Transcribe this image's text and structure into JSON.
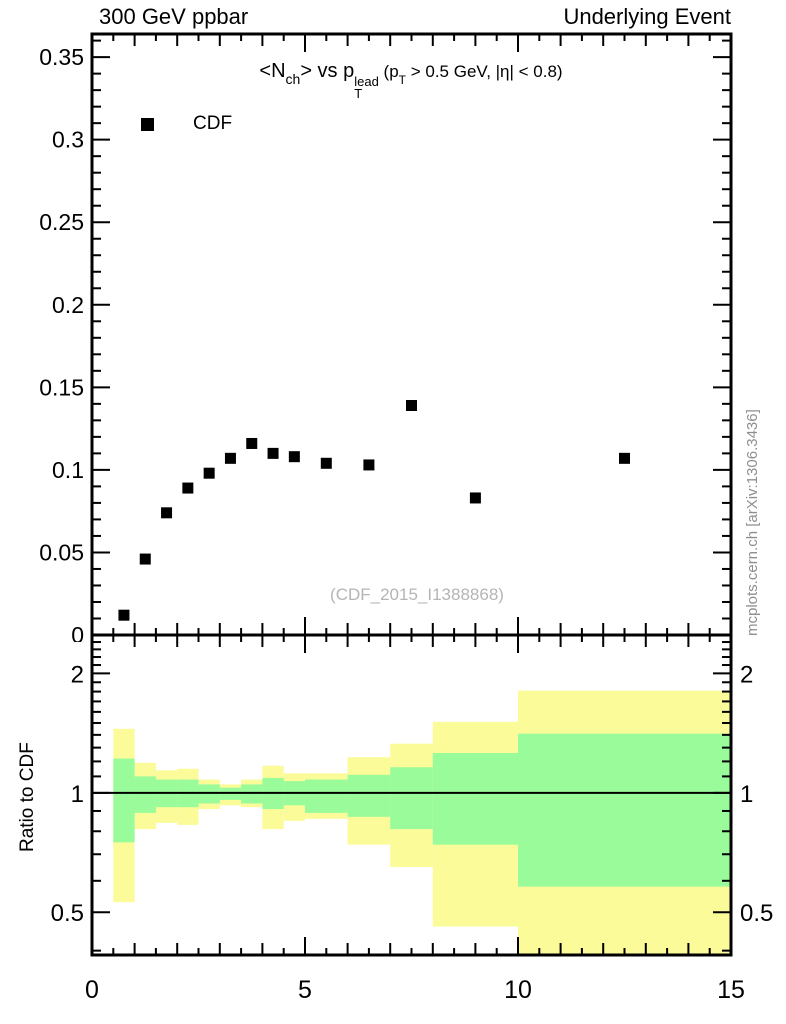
{
  "header": {
    "left": "300 GeV ppbar",
    "right": "Underlying Event"
  },
  "main_title_segments": [
    {
      "t": "<N",
      "s": "b"
    },
    {
      "t": "ch",
      "s": "sub"
    },
    {
      "t": "> vs p",
      "s": "b"
    },
    {
      "top": "lead",
      "bottom": "T",
      "s": "stack"
    },
    {
      "t": " (p",
      "s": "small"
    },
    {
      "t": "T",
      "s": "smallsub"
    },
    {
      "t": " > 0.5 GeV, |η| < 0.8)",
      "s": "small"
    }
  ],
  "legend": {
    "label": "CDF",
    "marker": "filled-square",
    "marker_color": "#000000"
  },
  "watermark": "(CDF_2015_I1388868)",
  "side_text": "mcplots.cern.ch [arXiv:1306.3436]",
  "ratio_axis_title": "Ratio to CDF",
  "colors": {
    "band_yellow": "#fbfb99",
    "band_green": "#99fb99",
    "marker": "#000000",
    "watermark_gray": "#b5b5b5",
    "side_text_gray": "#8f8f8f",
    "axis": "#000000"
  },
  "chart_data": [
    {
      "type": "scatter",
      "title": "<N_ch> vs p_T^lead (p_T > 0.5 GeV, |η| < 0.8)",
      "xlabel": "",
      "ylabel": "",
      "xlim": [
        0,
        15
      ],
      "ylim": [
        0,
        0.364
      ],
      "grid": false,
      "legend_position": "top-left",
      "yticks": [
        {
          "v": 0,
          "label": "0"
        },
        {
          "v": 0.05,
          "label": "0.05"
        },
        {
          "v": 0.1,
          "label": "0.1"
        },
        {
          "v": 0.15,
          "label": "0.15"
        },
        {
          "v": 0.2,
          "label": "0.2"
        },
        {
          "v": 0.25,
          "label": "0.25"
        },
        {
          "v": 0.3,
          "label": "0.3"
        },
        {
          "v": 0.35,
          "label": "0.35"
        }
      ],
      "y_minor_step": 0.01,
      "xticks": [
        {
          "v": 0,
          "label": ""
        },
        {
          "v": 5,
          "label": ""
        },
        {
          "v": 10,
          "label": ""
        },
        {
          "v": 15,
          "label": ""
        }
      ],
      "x_mid_step": 1,
      "x_minor_step": 0.5,
      "series": [
        {
          "name": "CDF",
          "marker": "filled-square",
          "color": "#000000",
          "x": [
            0.75,
            1.25,
            1.75,
            2.25,
            2.75,
            3.25,
            3.75,
            4.25,
            4.75,
            5.5,
            6.5,
            7.5,
            9.0,
            12.5
          ],
          "y": [
            0.012,
            0.046,
            0.074,
            0.089,
            0.098,
            0.107,
            0.116,
            0.11,
            0.108,
            0.104,
            0.103,
            0.139,
            0.083,
            0.107
          ]
        }
      ]
    },
    {
      "type": "area",
      "name": "ratio-to-cdf",
      "title": "Ratio to CDF",
      "yscale": "log",
      "xlim": [
        0,
        15
      ],
      "ylim": [
        0.39,
        2.5
      ],
      "reference_line": 1,
      "yticks": [
        {
          "v": 0.5,
          "label": "0.5"
        },
        {
          "v": 1,
          "label": "1"
        },
        {
          "v": 2,
          "label": "2"
        }
      ],
      "y_minor": [
        0.4,
        0.6,
        0.7,
        0.8,
        0.9,
        1.1,
        1.2,
        1.3,
        1.4,
        1.5,
        1.6,
        1.7,
        1.8,
        1.9,
        2.1,
        2.2,
        2.3,
        2.4
      ],
      "xticks": [
        {
          "v": 0,
          "label": "0"
        },
        {
          "v": 5,
          "label": "5"
        },
        {
          "v": 10,
          "label": "10"
        },
        {
          "v": 15,
          "label": "15"
        }
      ],
      "x_mid_step": 1,
      "x_minor_step": 0.5,
      "bands": [
        {
          "xlo": 0.5,
          "xhi": 1.0,
          "yellow_lo": 0.53,
          "yellow_hi": 1.45,
          "green_lo": 0.75,
          "green_hi": 1.22
        },
        {
          "xlo": 1.0,
          "xhi": 1.5,
          "yellow_lo": 0.81,
          "yellow_hi": 1.19,
          "green_lo": 0.89,
          "green_hi": 1.1
        },
        {
          "xlo": 1.5,
          "xhi": 2.0,
          "yellow_lo": 0.84,
          "yellow_hi": 1.14,
          "green_lo": 0.92,
          "green_hi": 1.08
        },
        {
          "xlo": 2.0,
          "xhi": 2.5,
          "yellow_lo": 0.83,
          "yellow_hi": 1.15,
          "green_lo": 0.92,
          "green_hi": 1.08
        },
        {
          "xlo": 2.5,
          "xhi": 3.0,
          "yellow_lo": 0.91,
          "yellow_hi": 1.08,
          "green_lo": 0.94,
          "green_hi": 1.05
        },
        {
          "xlo": 3.0,
          "xhi": 3.5,
          "yellow_lo": 0.93,
          "yellow_hi": 1.05,
          "green_lo": 0.96,
          "green_hi": 1.03
        },
        {
          "xlo": 3.5,
          "xhi": 4.0,
          "yellow_lo": 0.92,
          "yellow_hi": 1.08,
          "green_lo": 0.94,
          "green_hi": 1.05
        },
        {
          "xlo": 4.0,
          "xhi": 4.5,
          "yellow_lo": 0.81,
          "yellow_hi": 1.17,
          "green_lo": 0.91,
          "green_hi": 1.09
        },
        {
          "xlo": 4.5,
          "xhi": 5.0,
          "yellow_lo": 0.85,
          "yellow_hi": 1.12,
          "green_lo": 0.93,
          "green_hi": 1.07
        },
        {
          "xlo": 5.0,
          "xhi": 6.0,
          "yellow_lo": 0.86,
          "yellow_hi": 1.12,
          "green_lo": 0.89,
          "green_hi": 1.08
        },
        {
          "xlo": 6.0,
          "xhi": 7.0,
          "yellow_lo": 0.74,
          "yellow_hi": 1.23,
          "green_lo": 0.87,
          "green_hi": 1.11
        },
        {
          "xlo": 7.0,
          "xhi": 8.0,
          "yellow_lo": 0.65,
          "yellow_hi": 1.33,
          "green_lo": 0.81,
          "green_hi": 1.16
        },
        {
          "xlo": 8.0,
          "xhi": 10.0,
          "yellow_lo": 0.46,
          "yellow_hi": 1.51,
          "green_lo": 0.74,
          "green_hi": 1.26
        },
        {
          "xlo": 10.0,
          "xhi": 15.0,
          "yellow_lo": 0.39,
          "yellow_hi": 1.81,
          "green_lo": 0.58,
          "green_hi": 1.41
        }
      ]
    }
  ]
}
